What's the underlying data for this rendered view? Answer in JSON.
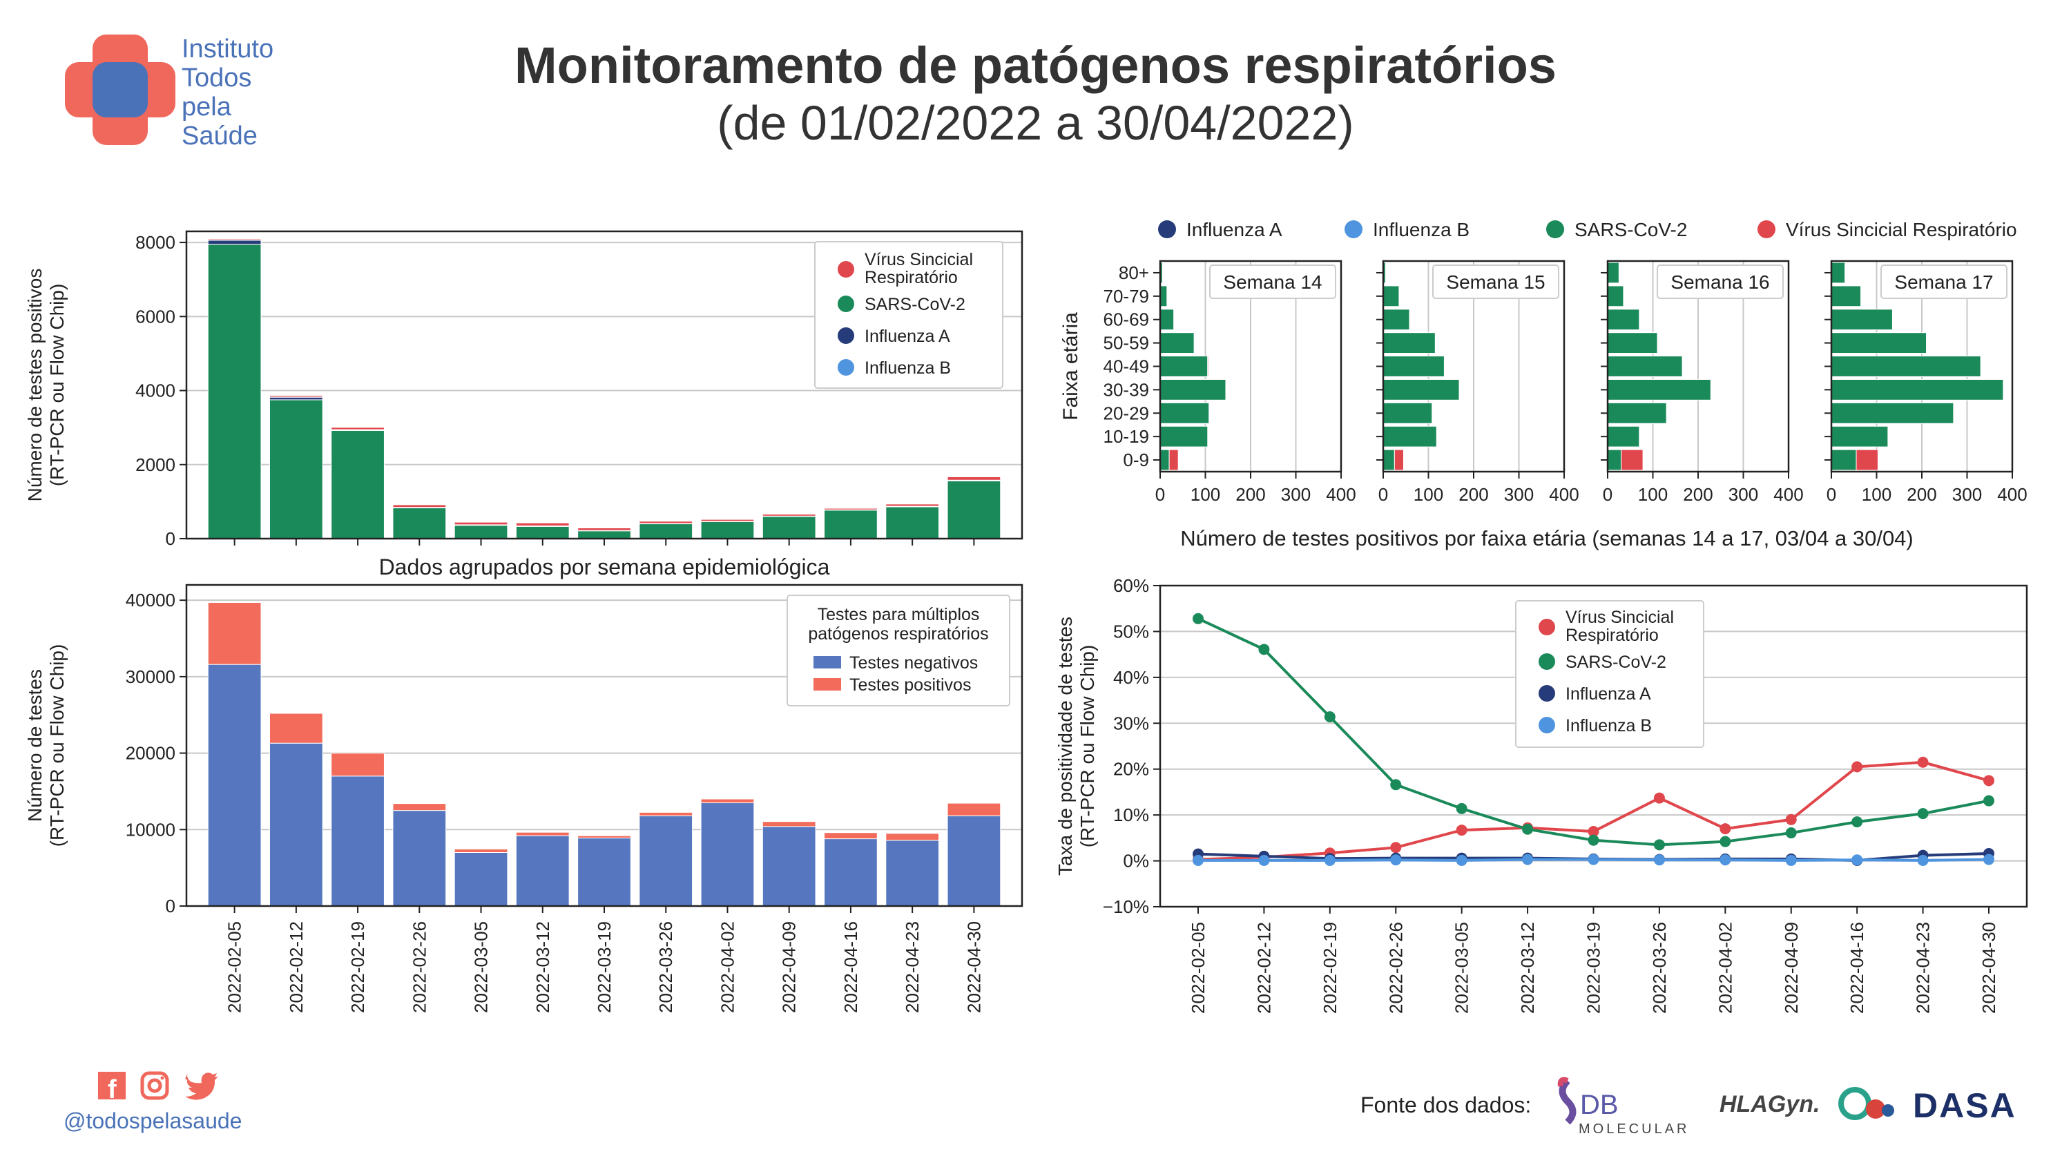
{
  "header": {
    "title": "Monitoramento de patógenos respiratórios",
    "subtitle": "(de 01/02/2022 a 30/04/2022)"
  },
  "org": {
    "logo_text": "Instituto\nTodos\npela\nSaúde"
  },
  "footer": {
    "handle": "@todospelasaude",
    "source_label": "Fonte dos dados:",
    "partners": [
      "DB MOLECULAR",
      "HLAGyn",
      "DASA"
    ],
    "db_logo_line1": "DB",
    "db_logo_line2": "MOLECULAR",
    "hla_logo_text": "HLAGyn.",
    "dasa_logo_text": "DASA",
    "social_icons": [
      "facebook-icon",
      "instagram-icon",
      "twitter-icon"
    ]
  },
  "colors": {
    "rsv": "#e0474c",
    "sars": "#1b8a5a",
    "fluA": "#263c7a",
    "fluB": "#4f94df",
    "negativos": "#5677bf",
    "positivos": "#f26b5b",
    "brand_red": "#f0675b",
    "brand_blue": "#4a72b8"
  },
  "chart_data": [
    {
      "id": "positivos-por-semana",
      "type": "bar",
      "stacked": true,
      "categories": [
        "2022-02-05",
        "2022-02-12",
        "2022-02-19",
        "2022-02-26",
        "2022-03-05",
        "2022-03-12",
        "2022-03-19",
        "2022-03-26",
        "2022-04-02",
        "2022-04-09",
        "2022-04-16",
        "2022-04-23",
        "2022-04-30"
      ],
      "series": [
        {
          "name": "SARS-CoV-2",
          "values": [
            7950,
            3750,
            2920,
            830,
            360,
            330,
            210,
            400,
            460,
            600,
            770,
            860,
            1560
          ]
        },
        {
          "name": "Influenza A",
          "values": [
            110,
            70,
            20,
            10,
            10,
            10,
            5,
            5,
            5,
            5,
            5,
            10,
            15
          ]
        },
        {
          "name": "Influenza B",
          "values": [
            5,
            5,
            5,
            5,
            5,
            5,
            5,
            5,
            5,
            5,
            5,
            5,
            5
          ]
        },
        {
          "name": "Vírus Sincicial Respiratório",
          "values": [
            30,
            40,
            60,
            70,
            70,
            80,
            70,
            60,
            50,
            50,
            40,
            60,
            90
          ]
        }
      ],
      "legend_title": "",
      "legend_entries": [
        "Vírus Sincicial Respiratório",
        "SARS-CoV-2",
        "Influenza A",
        "Influenza B"
      ],
      "legend_placement": "top-right",
      "xlabel": "Dados agrupados por semana epidemiológica",
      "ylabel": "Número de testes positivos (RT-PCR ou Flow Chip)",
      "ylim": [
        0,
        8300
      ],
      "yticks": [
        0,
        2000,
        4000,
        6000,
        8000
      ],
      "grid": true
    },
    {
      "id": "testes-por-semana",
      "type": "bar",
      "stacked": true,
      "categories": [
        "2022-02-05",
        "2022-02-12",
        "2022-02-19",
        "2022-02-26",
        "2022-03-05",
        "2022-03-12",
        "2022-03-19",
        "2022-03-26",
        "2022-04-02",
        "2022-04-09",
        "2022-04-16",
        "2022-04-23",
        "2022-04-30"
      ],
      "series": [
        {
          "name": "Testes negativos",
          "values": [
            31600,
            21300,
            17000,
            12500,
            7000,
            9200,
            8900,
            11800,
            13500,
            10400,
            8800,
            8600,
            11800
          ]
        },
        {
          "name": "Testes positivos",
          "values": [
            8100,
            3900,
            3000,
            900,
            450,
            450,
            300,
            450,
            500,
            650,
            800,
            900,
            1650
          ]
        }
      ],
      "legend_title": "Testes para múltiplos\npatógenos respiratórios",
      "legend_placement": "top-right",
      "xlabel": "",
      "ylabel": "Número de testes (RT-PCR ou Flow Chip)",
      "ylim": [
        0,
        42000
      ],
      "yticks": [
        0,
        10000,
        20000,
        30000,
        40000
      ],
      "grid": true
    },
    {
      "id": "faixa-etaria",
      "type": "bar",
      "orientation": "horizontal",
      "stacked": true,
      "age_groups": [
        "0-9",
        "10-19",
        "20-29",
        "30-39",
        "40-49",
        "50-59",
        "60-69",
        "70-79",
        "80+"
      ],
      "panels": [
        {
          "label": "Semana 14",
          "sars": [
            20,
            105,
            108,
            145,
            105,
            75,
            30,
            15,
            5
          ],
          "rsv": [
            20,
            0,
            0,
            0,
            2,
            0,
            0,
            0,
            0
          ]
        },
        {
          "label": "Semana 15",
          "sars": [
            25,
            118,
            108,
            168,
            135,
            115,
            58,
            35,
            5
          ],
          "rsv": [
            20,
            0,
            0,
            0,
            0,
            0,
            0,
            0,
            0
          ]
        },
        {
          "label": "Semana 16",
          "sars": [
            30,
            70,
            130,
            228,
            165,
            110,
            70,
            35,
            25
          ],
          "rsv": [
            48,
            0,
            0,
            0,
            0,
            0,
            0,
            0,
            0
          ]
        },
        {
          "label": "Semana 17",
          "sars": [
            55,
            125,
            270,
            380,
            330,
            210,
            135,
            65,
            30
          ],
          "rsv": [
            48,
            0,
            0,
            0,
            0,
            0,
            0,
            0,
            0
          ]
        }
      ],
      "legend_entries": [
        "Influenza A",
        "Influenza B",
        "SARS-CoV-2",
        "Vírus Sincicial Respiratório"
      ],
      "legend_placement": "top",
      "xlabel": "Número de testes positivos por faixa etária (semanas 14 a 17, 03/04 a 30/04)",
      "ylabel": "Faixa etária",
      "xlim": [
        0,
        400
      ],
      "xticks": [
        0,
        100,
        200,
        300,
        400
      ],
      "grid": true
    },
    {
      "id": "positividade",
      "type": "line",
      "x": [
        "2022-02-05",
        "2022-02-12",
        "2022-02-19",
        "2022-02-26",
        "2022-03-05",
        "2022-03-12",
        "2022-03-19",
        "2022-03-26",
        "2022-04-02",
        "2022-04-09",
        "2022-04-16",
        "2022-04-23",
        "2022-04-30"
      ],
      "series": [
        {
          "name": "Vírus Sincicial Respiratório",
          "values": [
            0.3,
            0.8,
            1.7,
            2.9,
            6.7,
            7.2,
            6.4,
            13.7,
            7.0,
            9.0,
            20.5,
            21.5,
            17.5
          ]
        },
        {
          "name": "SARS-CoV-2",
          "values": [
            52.8,
            46.1,
            31.4,
            16.6,
            11.4,
            6.9,
            4.5,
            3.5,
            4.2,
            6.1,
            8.5,
            10.3,
            13.1
          ]
        },
        {
          "name": "Influenza A",
          "values": [
            1.5,
            1.0,
            0.5,
            0.6,
            0.6,
            0.6,
            0.4,
            0.3,
            0.4,
            0.4,
            0.1,
            1.2,
            1.6
          ]
        },
        {
          "name": "Influenza B",
          "values": [
            0.1,
            0.1,
            0.1,
            0.2,
            0.1,
            0.3,
            0.3,
            0.2,
            0.2,
            0.1,
            0.2,
            0.1,
            0.3
          ]
        }
      ],
      "legend_placement": "upper-center",
      "ylabel": "Taxa de positividade de testes (RT-PCR ou Flow Chip)",
      "ylim": [
        -10,
        60
      ],
      "yticks": [
        -10,
        0,
        10,
        20,
        30,
        40,
        50,
        60
      ],
      "ytick_labels": [
        "−10%",
        "0%",
        "10%",
        "20%",
        "30%",
        "40%",
        "50%",
        "60%"
      ],
      "grid": true
    }
  ]
}
